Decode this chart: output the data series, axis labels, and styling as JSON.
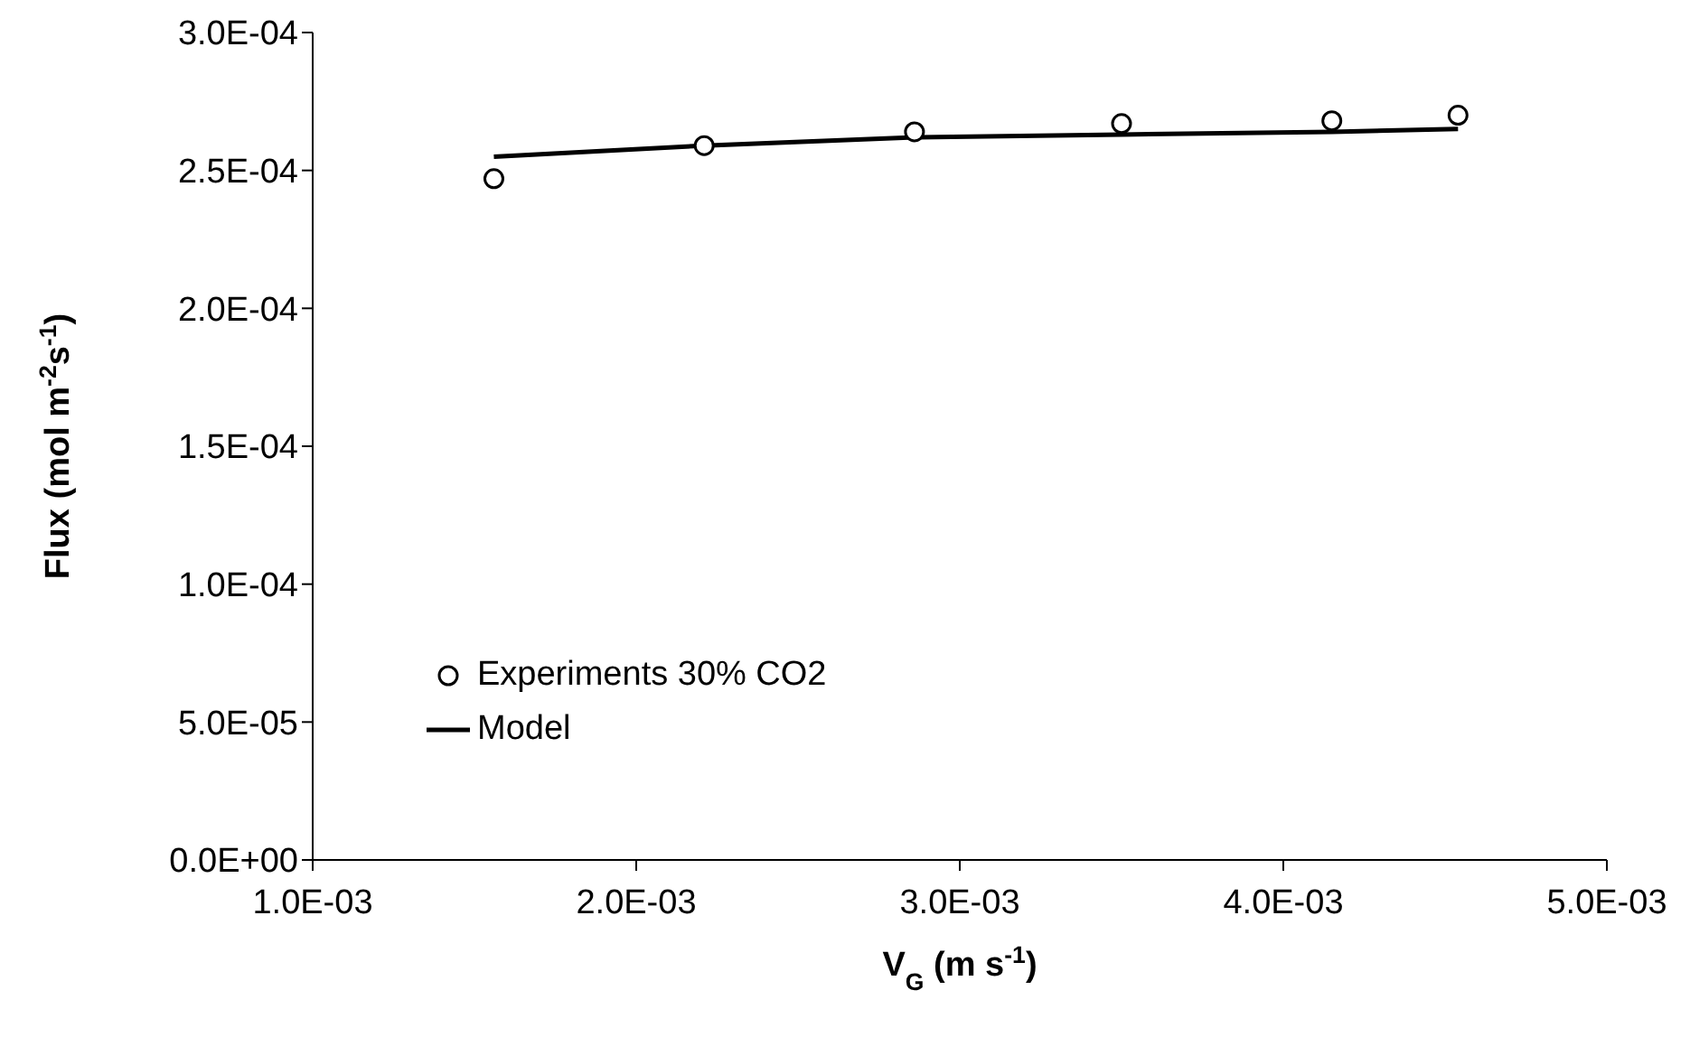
{
  "chart_data": {
    "type": "scatter",
    "xlabel": "V$_{G}$ (m s$^{-1}$)",
    "ylabel": "Flux (mol m$^{-2}$s$^{-1}$)",
    "xlim": [
      0.001,
      0.005
    ],
    "xticks": [
      {
        "value": 0.001,
        "label": "1.0E-03"
      },
      {
        "value": 0.002,
        "label": "2.0E-03"
      },
      {
        "value": 0.003,
        "label": "3.0E-03"
      },
      {
        "value": 0.004,
        "label": "4.0E-03"
      },
      {
        "value": 0.005,
        "label": "5.0E-03"
      }
    ],
    "ylim": [
      0,
      0.0003
    ],
    "yticks": [
      {
        "value": 0,
        "label": "0.0E+00"
      },
      {
        "value": 5e-05,
        "label": "5.0E-05"
      },
      {
        "value": 0.0001,
        "label": "1.0E-04"
      },
      {
        "value": 0.00015,
        "label": "1.5E-04"
      },
      {
        "value": 0.0002,
        "label": "2.0E-04"
      },
      {
        "value": 0.00025,
        "label": "2.5E-04"
      },
      {
        "value": 0.0003,
        "label": "3.0E-04"
      }
    ],
    "grid": false,
    "legend": "left",
    "series": [
      {
        "name": "Experiments 30% CO2",
        "marker": "circle",
        "color": "#000000",
        "x": [
          0.00156,
          0.00221,
          0.00286,
          0.0035,
          0.00415,
          0.00454
        ],
        "values": [
          0.000247,
          0.000259,
          0.000264,
          0.000267,
          0.000268,
          0.00027
        ]
      },
      {
        "name": "Model",
        "type": "line",
        "marker": "none",
        "line_style": "solid",
        "color": "#000000",
        "x": [
          0.00156,
          0.00221,
          0.00286,
          0.0035,
          0.00415,
          0.00454
        ],
        "values": [
          0.000255,
          0.000259,
          0.000262,
          0.000263,
          0.000264,
          0.000265
        ]
      }
    ]
  }
}
